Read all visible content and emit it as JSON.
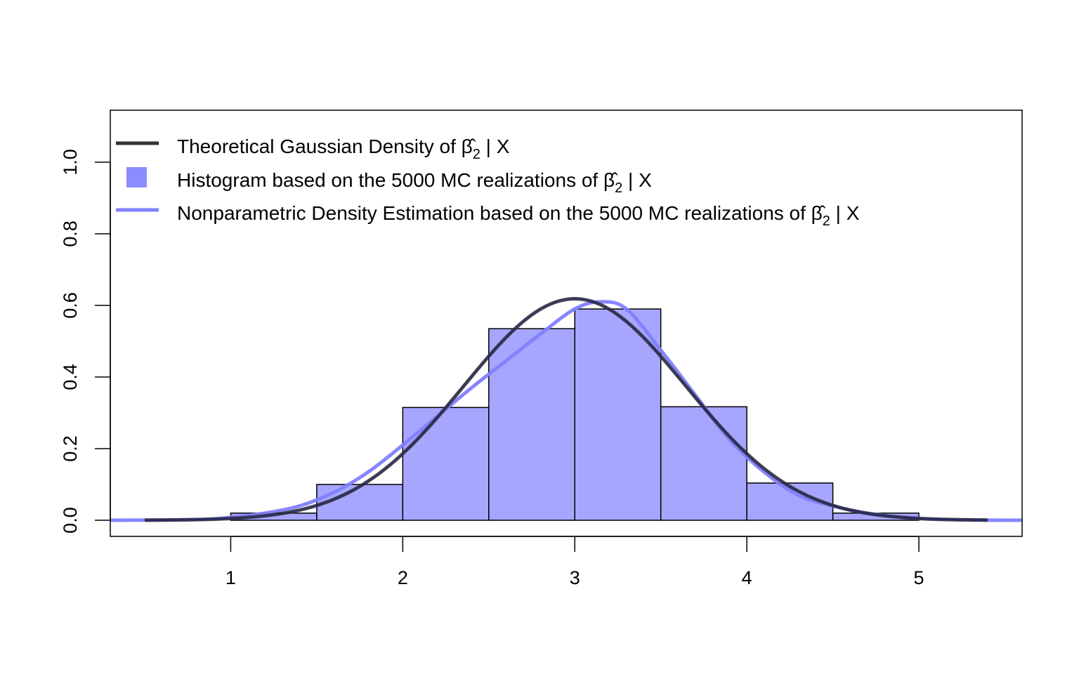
{
  "chart_data": {
    "type": "bar",
    "title": "",
    "xlabel": "",
    "ylabel": "",
    "xlim": [
      0.3,
      5.6
    ],
    "ylim": [
      -0.045,
      1.145
    ],
    "x_ticks": [
      1,
      2,
      3,
      4,
      5
    ],
    "y_ticks": [
      0.0,
      0.2,
      0.4,
      0.6,
      0.8,
      1.0
    ],
    "x_tick_labels": [
      "1",
      "2",
      "3",
      "4",
      "5"
    ],
    "y_tick_labels": [
      "0.0",
      "0.2",
      "0.4",
      "0.6",
      "0.8",
      "1.0"
    ],
    "grid": false,
    "legend_position": "top-left",
    "histogram": {
      "name": "Histogram based on the 5000 MC realizations of",
      "color": "#a6a6ff",
      "edge_color": "#000000",
      "bins": [
        {
          "from": 1.0,
          "to": 1.5,
          "density": 0.02
        },
        {
          "from": 1.5,
          "to": 2.0,
          "density": 0.1
        },
        {
          "from": 2.0,
          "to": 2.5,
          "density": 0.315
        },
        {
          "from": 2.5,
          "to": 3.0,
          "density": 0.535
        },
        {
          "from": 3.0,
          "to": 3.5,
          "density": 0.59
        },
        {
          "from": 3.5,
          "to": 4.0,
          "density": 0.317
        },
        {
          "from": 4.0,
          "to": 4.5,
          "density": 0.104
        },
        {
          "from": 4.5,
          "to": 5.0,
          "density": 0.02
        }
      ]
    },
    "series": [
      {
        "name": "Theoretical Gaussian Density of",
        "kind": "gaussian",
        "mean": 3.0,
        "sd": 0.645,
        "x_range": [
          0.5,
          5.4
        ],
        "color": "#333333"
      },
      {
        "name": "Nonparametric Density Estimation based on the 5000 MC realizations of",
        "kind": "kde",
        "x_range": [
          0.3,
          5.6
        ],
        "color": "#8080ff",
        "points": [
          [
            0.3,
            0.0
          ],
          [
            0.8,
            0.002
          ],
          [
            1.0,
            0.008
          ],
          [
            1.2,
            0.02
          ],
          [
            1.4,
            0.04
          ],
          [
            1.6,
            0.078
          ],
          [
            1.8,
            0.135
          ],
          [
            2.0,
            0.21
          ],
          [
            2.2,
            0.29
          ],
          [
            2.4,
            0.37
          ],
          [
            2.6,
            0.445
          ],
          [
            2.8,
            0.52
          ],
          [
            3.0,
            0.59
          ],
          [
            3.15,
            0.61
          ],
          [
            3.3,
            0.59
          ],
          [
            3.5,
            0.475
          ],
          [
            3.7,
            0.35
          ],
          [
            3.9,
            0.225
          ],
          [
            4.1,
            0.135
          ],
          [
            4.3,
            0.07
          ],
          [
            4.5,
            0.04
          ],
          [
            4.7,
            0.02
          ],
          [
            5.0,
            0.005
          ],
          [
            5.3,
            0.001
          ],
          [
            5.6,
            0.0
          ]
        ]
      }
    ],
    "legend": [
      {
        "type": "line",
        "color": "#333333",
        "text": "Theoretical Gaussian Density of"
      },
      {
        "type": "box",
        "color": "#8c8cff",
        "text": "Histogram based on the 5000 MC realizations of"
      },
      {
        "type": "line",
        "color": "#8080ff",
        "text": "Nonparametric Density Estimation based on the 5000 MC realizations of"
      }
    ],
    "legend_math": {
      "symbol": "β̂",
      "subscript": "2",
      "suffix": " | X"
    }
  }
}
